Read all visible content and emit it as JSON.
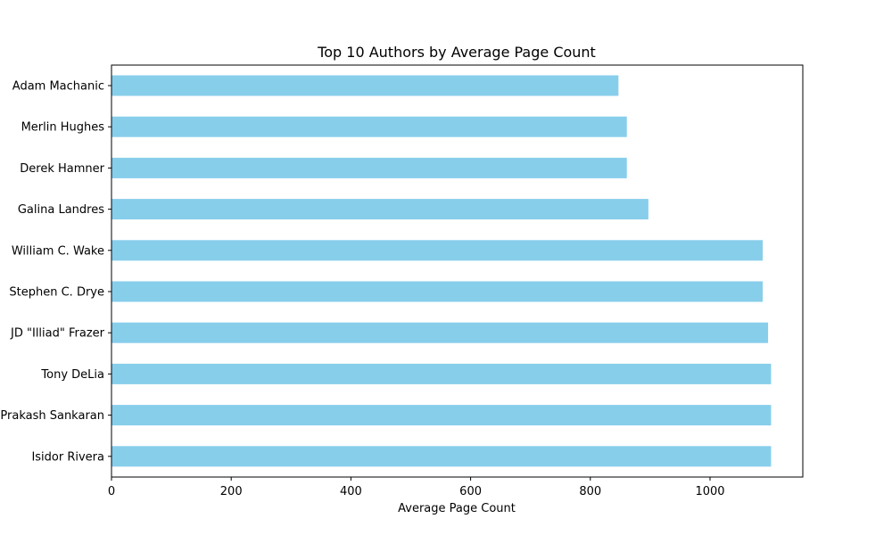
{
  "chart_data": {
    "type": "bar",
    "orientation": "horizontal",
    "title": "Top 10 Authors by Average Page Count",
    "xlabel": "Average Page Count",
    "ylabel": "",
    "xlim": [
      0,
      1155
    ],
    "xticks": [
      0,
      200,
      400,
      600,
      800,
      1000
    ],
    "grid": false,
    "bar_color": "#87ceeb",
    "categories": [
      "Adam Machanic",
      "Merlin Hughes",
      "Derek Hamner",
      "Galina Landres",
      "William C. Wake",
      "Stephen C. Drye",
      "JD \"Illiad\" Frazer",
      "Tony DeLia",
      "Prakash Sankaran",
      "Isidor Rivera"
    ],
    "values": [
      847,
      861,
      861,
      897,
      1088,
      1088,
      1097,
      1102,
      1102,
      1102
    ]
  }
}
